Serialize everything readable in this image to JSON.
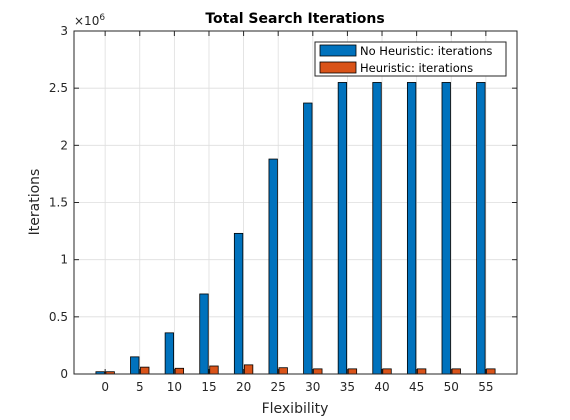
{
  "chart_data": {
    "type": "bar",
    "title": "Total Search Iterations",
    "xlabel": "Flexibility",
    "ylabel": "Iterations",
    "categories": [
      "0",
      "5",
      "10",
      "15",
      "20",
      "25",
      "30",
      "35",
      "40",
      "45",
      "50",
      "55"
    ],
    "series": [
      {
        "name": "No Heuristic: iterations",
        "color": "#0072BD",
        "values": [
          0.02,
          0.15,
          0.36,
          0.7,
          1.23,
          1.88,
          2.37,
          2.55,
          2.55,
          2.55,
          2.55,
          2.55
        ]
      },
      {
        "name": "Heuristic: iterations",
        "color": "#D95319",
        "values": [
          0.02,
          0.06,
          0.05,
          0.07,
          0.08,
          0.055,
          0.045,
          0.045,
          0.045,
          0.045,
          0.045,
          0.045
        ]
      }
    ],
    "ylim": [
      0,
      3
    ],
    "yticks": [
      "0",
      "0.5",
      "1",
      "1.5",
      "2",
      "2.5",
      "3"
    ],
    "y_exponent_base": "×10",
    "y_exponent_power": "6",
    "grid": true,
    "legend_position": "top-right"
  }
}
